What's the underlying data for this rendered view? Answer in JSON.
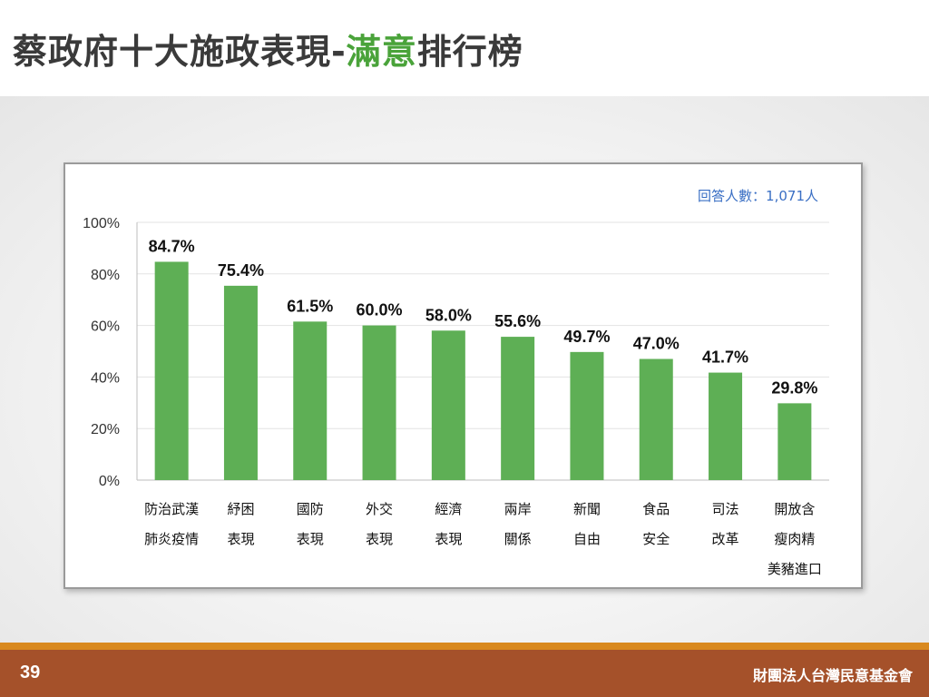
{
  "slide": {
    "title_main": "蔡政府十大施政表現-",
    "title_highlight": "滿意",
    "title_tail": "排行榜",
    "page_number": "39",
    "organization": "財團法人台灣民意基金會"
  },
  "colors": {
    "bar": "#5eaf55",
    "title_highlight": "#4aa33a",
    "footer": "#a5512a",
    "footer_line": "#d9891f"
  },
  "chart_data": {
    "type": "bar",
    "note": "回答人數：1,071人",
    "categories": [
      [
        "防治武漢",
        "肺炎疫情"
      ],
      [
        "紓困",
        "表現"
      ],
      [
        "國防",
        "表現"
      ],
      [
        "外交",
        "表現"
      ],
      [
        "經濟",
        "表現"
      ],
      [
        "兩岸",
        "關係"
      ],
      [
        "新聞",
        "自由"
      ],
      [
        "食品",
        "安全"
      ],
      [
        "司法",
        "改革"
      ],
      [
        "開放含",
        "瘦肉精",
        "美豬進口"
      ]
    ],
    "values": [
      84.7,
      75.4,
      61.5,
      60.0,
      58.0,
      55.6,
      49.7,
      47.0,
      41.7,
      29.8
    ],
    "value_labels": [
      "84.7%",
      "75.4%",
      "61.5%",
      "60.0%",
      "58.0%",
      "55.6%",
      "49.7%",
      "47.0%",
      "41.7%",
      "29.8%"
    ],
    "ylim": [
      0,
      100
    ],
    "yticks": [
      "0%",
      "20%",
      "40%",
      "60%",
      "80%",
      "100%"
    ],
    "grid": true
  }
}
